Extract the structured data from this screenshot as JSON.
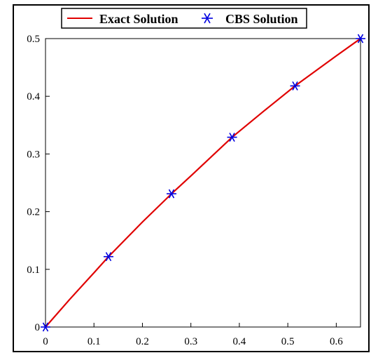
{
  "chart_data": {
    "type": "line",
    "title": "",
    "xlabel": "",
    "ylabel": "",
    "xlim": [
      0,
      0.65
    ],
    "ylim": [
      0,
      0.5
    ],
    "x_ticks": [
      0,
      0.1,
      0.2,
      0.3,
      0.4,
      0.5,
      0.6
    ],
    "y_ticks": [
      0,
      0.1,
      0.2,
      0.3,
      0.4,
      0.5
    ],
    "x_tick_labels": [
      "0",
      "0.1",
      "0.2",
      "0.3",
      "0.4",
      "0.5",
      "0.6"
    ],
    "y_tick_labels": [
      "0",
      "0.1",
      "0.2",
      "0.3",
      "0.4",
      "0.5"
    ],
    "grid": false,
    "legend_position": "top-center",
    "series": [
      {
        "name": "Exact Solution",
        "style": "line",
        "color": "#e00000",
        "x": [
          0,
          0.05,
          0.1,
          0.13,
          0.2,
          0.26,
          0.3,
          0.385,
          0.45,
          0.515,
          0.6,
          0.65
        ],
        "y": [
          0,
          0.048,
          0.094,
          0.122,
          0.182,
          0.231,
          0.262,
          0.329,
          0.374,
          0.418,
          0.47,
          0.5
        ]
      },
      {
        "name": "CBS Solution",
        "style": "marker",
        "marker": "asterisk",
        "color": "#0000e0",
        "x": [
          0,
          0.13,
          0.26,
          0.385,
          0.515,
          0.65
        ],
        "y": [
          0,
          0.122,
          0.231,
          0.329,
          0.418,
          0.5
        ]
      }
    ]
  }
}
